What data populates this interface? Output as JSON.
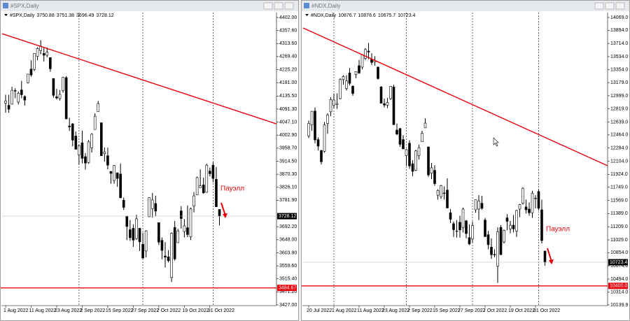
{
  "chart_data": [
    {
      "type": "candlestick",
      "title": "#SPX,Daily",
      "candles": [
        [
          4112,
          4140,
          4079,
          4119
        ],
        [
          4104,
          4140,
          4079,
          4091
        ],
        [
          4108,
          4167,
          4107,
          4155
        ],
        [
          4154,
          4162,
          4128,
          4152
        ],
        [
          4115,
          4151,
          4107,
          4145
        ],
        [
          4156,
          4187,
          4128,
          4140
        ],
        [
          4134,
          4138,
          4103,
          4122
        ],
        [
          4181,
          4211,
          4178,
          4210
        ],
        [
          4227,
          4257,
          4201,
          4207
        ],
        [
          4226,
          4280,
          4220,
          4280
        ],
        [
          4270,
          4301,
          4257,
          4297
        ],
        [
          4290,
          4325,
          4277,
          4305
        ],
        [
          4280,
          4302,
          4253,
          4274
        ],
        [
          4274,
          4300,
          4267,
          4284
        ],
        [
          4266,
          4267,
          4218,
          4228
        ],
        [
          4195,
          4196,
          4130,
          4138
        ],
        [
          4133,
          4160,
          4124,
          4129
        ],
        [
          4127,
          4156,
          4120,
          4141
        ],
        [
          4154,
          4200,
          4147,
          4199
        ],
        [
          4198,
          4203,
          4057,
          4058
        ],
        [
          4034,
          4062,
          4017,
          4031
        ],
        [
          4041,
          4044,
          3965,
          3986
        ],
        [
          4000,
          4015,
          3954,
          3955
        ],
        [
          3936,
          3970,
          3903,
          3967
        ],
        [
          3977,
          4018,
          3907,
          3924
        ],
        [
          3930,
          3942,
          3886,
          3908
        ],
        [
          3910,
          3987,
          3906,
          3980
        ],
        [
          3960,
          4010,
          3944,
          4006
        ],
        [
          4022,
          4077,
          4022,
          4067
        ],
        [
          4083,
          4119,
          4083,
          4110
        ],
        [
          4045,
          4045,
          3932,
          3933
        ],
        [
          3940,
          3961,
          3913,
          3946
        ],
        [
          3933,
          3960,
          3887,
          3901
        ],
        [
          3880,
          3880,
          3838,
          3873
        ],
        [
          3849,
          3901,
          3838,
          3900
        ],
        [
          3875,
          3876,
          3828,
          3856
        ],
        [
          3871,
          3907,
          3790,
          3790
        ],
        [
          3782,
          3791,
          3749,
          3758
        ],
        [
          3728,
          3728,
          3647,
          3693
        ],
        [
          3682,
          3715,
          3644,
          3655
        ],
        [
          3687,
          3700,
          3624,
          3647
        ],
        [
          3652,
          3733,
          3648,
          3719
        ],
        [
          3687,
          3687,
          3610,
          3641
        ],
        [
          3633,
          3672,
          3584,
          3586
        ],
        [
          3610,
          3680,
          3588,
          3678
        ],
        [
          3726,
          3792,
          3726,
          3791
        ],
        [
          3753,
          3807,
          3723,
          3783
        ],
        [
          3771,
          3797,
          3728,
          3745
        ],
        [
          3706,
          3706,
          3630,
          3640
        ],
        [
          3646,
          3656,
          3582,
          3612
        ],
        [
          3593,
          3640,
          3554,
          3589
        ],
        [
          3590,
          3613,
          3571,
          3577
        ],
        [
          3520,
          3673,
          3505,
          3670
        ],
        [
          3690,
          3712,
          3577,
          3583
        ],
        [
          3638,
          3685,
          3638,
          3678
        ],
        [
          3746,
          3762,
          3686,
          3720
        ],
        [
          3676,
          3718,
          3656,
          3695
        ],
        [
          3689,
          3764,
          3657,
          3666
        ],
        [
          3658,
          3757,
          3647,
          3753
        ],
        [
          3762,
          3810,
          3741,
          3797
        ],
        [
          3800,
          3862,
          3800,
          3859
        ],
        [
          3825,
          3887,
          3824,
          3831
        ],
        [
          3834,
          3859,
          3804,
          3807
        ],
        [
          3809,
          3906,
          3808,
          3901
        ],
        [
          3881,
          3893,
          3863,
          3872
        ],
        [
          3901,
          3911,
          3843,
          3856
        ],
        [
          3853,
          3895,
          3759,
          3760
        ],
        [
          3750.88,
          3751.38,
          3696.49,
          3728.12
        ]
      ],
      "categories": [
        "1 Aug 2022",
        null,
        null,
        null,
        null,
        null,
        null,
        null,
        "11 Aug 2022",
        null,
        null,
        null,
        null,
        null,
        null,
        null,
        "23 Aug 2022",
        null,
        null,
        null,
        null,
        null,
        null,
        null,
        "2 Sep 2022",
        null,
        null,
        null,
        null,
        null,
        null,
        null,
        "15 Sep 2022",
        null,
        null,
        null,
        null,
        null,
        null,
        null,
        "27 Sep 2022",
        null,
        null,
        null,
        null,
        null,
        null,
        null,
        "7 Oct 2022",
        null,
        null,
        null,
        null,
        null,
        null,
        null,
        "19 Oct 2022",
        null,
        null,
        null,
        null,
        null,
        null,
        null,
        "31 Oct 2022",
        null,
        null,
        null
      ],
      "ylim": [
        3427,
        4402
      ],
      "yticks": [
        {
          "value": 4402,
          "label": "4402.00"
        },
        {
          "value": 4357.6,
          "label": "4357.60"
        },
        {
          "value": 4313.6,
          "label": "4313.60"
        },
        {
          "value": 4269.4,
          "label": "4269.40"
        },
        {
          "value": 4225.2,
          "label": "4225.20"
        },
        {
          "value": 4181,
          "label": "4181.00"
        },
        {
          "value": 4135.5,
          "label": "4135.50"
        },
        {
          "value": 4091.3,
          "label": "4091.30"
        },
        {
          "value": 4047.1,
          "label": "4047.10"
        },
        {
          "value": 4002.9,
          "label": "4002.90"
        },
        {
          "value": 3958.7,
          "label": "3958.70"
        },
        {
          "value": 3914.5,
          "label": "3914.50"
        },
        {
          "value": 3870.3,
          "label": "3870.30"
        },
        {
          "value": 3826.1,
          "label": "3826.10"
        },
        {
          "value": 3781.9,
          "label": "3781.90"
        },
        {
          "value": 3692.2,
          "label": "3692.20"
        },
        {
          "value": 3648,
          "label": "3648.00"
        },
        {
          "value": 3603.8,
          "label": "3603.80"
        },
        {
          "value": 3559.6,
          "label": "3559.60"
        },
        {
          "value": 3515.4,
          "label": "3515.40"
        },
        {
          "value": 3471.2,
          "label": "3471.20"
        },
        {
          "value": 3427,
          "label": "3427.00"
        }
      ],
      "trendline": [
        4347,
        4041
      ],
      "trend_color": "#e8000b",
      "hline": 3484.67,
      "hline_color": "#e8000b",
      "annotation": "Пауэлл"
    },
    {
      "type": "candlestick",
      "title": "#NDX,Daily",
      "candles": [
        [
          12450,
          12660,
          12420,
          12622
        ],
        [
          12600,
          12790,
          12520,
          12787
        ],
        [
          12790,
          12840,
          12350,
          12396
        ],
        [
          12400,
          12430,
          12250,
          12310
        ],
        [
          12250,
          12260,
          12060,
          12097
        ],
        [
          12240,
          12640,
          12220,
          12601
        ],
        [
          12620,
          12760,
          12480,
          12738
        ],
        [
          12780,
          12980,
          12720,
          12947
        ],
        [
          12870,
          13030,
          12830,
          12941
        ],
        [
          12880,
          13030,
          12820,
          12893
        ],
        [
          12960,
          13240,
          12950,
          13220
        ],
        [
          13220,
          13280,
          13150,
          13262
        ],
        [
          13100,
          13280,
          13070,
          13202
        ],
        [
          13310,
          13380,
          13140,
          13169
        ],
        [
          13130,
          13140,
          13000,
          13030
        ],
        [
          13290,
          13330,
          13240,
          13330
        ],
        [
          13410,
          13490,
          13300,
          13310
        ],
        [
          13390,
          13560,
          13360,
          13560
        ],
        [
          13510,
          13650,
          13490,
          13631
        ],
        [
          13610,
          13720,
          13500,
          13596
        ],
        [
          13500,
          13580,
          13420,
          13455
        ],
        [
          13460,
          13540,
          13410,
          13481
        ],
        [
          13390,
          13400,
          13220,
          13234
        ],
        [
          13120,
          13130,
          12920,
          12897
        ],
        [
          12890,
          12960,
          12840,
          12872
        ],
        [
          12870,
          12970,
          12830,
          12908
        ],
        [
          12960,
          13130,
          12940,
          13129
        ],
        [
          13120,
          13150,
          12600,
          12604
        ],
        [
          12530,
          12620,
          12460,
          12476
        ],
        [
          12550,
          12560,
          12300,
          12334
        ],
        [
          12400,
          12460,
          12270,
          12272
        ],
        [
          12180,
          12270,
          12040,
          12262
        ],
        [
          12350,
          12390,
          12000,
          12040
        ],
        [
          12070,
          12120,
          11900,
          11966
        ],
        [
          11980,
          12260,
          11970,
          12245
        ],
        [
          12180,
          12330,
          12130,
          12290
        ],
        [
          12370,
          12520,
          12370,
          12487
        ],
        [
          12560,
          12690,
          12560,
          12625
        ],
        [
          12300,
          12300,
          11890,
          11916
        ],
        [
          11940,
          12080,
          11860,
          12014
        ],
        [
          11980,
          12050,
          11770,
          11797
        ],
        [
          11640,
          11720,
          11580,
          11705
        ],
        [
          11620,
          11780,
          11590,
          11769
        ],
        [
          11670,
          11760,
          11580,
          11664
        ],
        [
          11710,
          11870,
          11460,
          11465
        ],
        [
          11400,
          11450,
          11260,
          11310
        ],
        [
          11250,
          11280,
          11070,
          11168
        ],
        [
          11150,
          11300,
          11060,
          11152
        ],
        [
          11270,
          11360,
          11060,
          11166
        ],
        [
          11200,
          11470,
          11130,
          11450
        ],
        [
          11290,
          11300,
          11050,
          11115
        ],
        [
          11060,
          11240,
          10960,
          10972
        ],
        [
          11040,
          11280,
          10990,
          11223
        ],
        [
          11440,
          11580,
          11400,
          11577
        ],
        [
          11450,
          11640,
          11300,
          11561
        ],
        [
          11530,
          11630,
          11440,
          11460
        ],
        [
          11300,
          11330,
          11070,
          11073
        ],
        [
          11100,
          11150,
          10900,
          10963
        ],
        [
          10930,
          11050,
          10770,
          10826
        ],
        [
          10830,
          10900,
          10790,
          10825
        ],
        [
          10670,
          11200,
          10440,
          11140
        ],
        [
          11200,
          11230,
          10820,
          10828
        ],
        [
          11000,
          11170,
          10980,
          11160
        ],
        [
          11330,
          11380,
          11160,
          11282
        ],
        [
          11180,
          11290,
          11120,
          11228
        ],
        [
          11230,
          11370,
          11130,
          11179
        ],
        [
          11150,
          11440,
          11070,
          11431
        ],
        [
          11450,
          11520,
          11340,
          11510
        ],
        [
          11530,
          11750,
          11510,
          11735
        ],
        [
          11480,
          11580,
          11390,
          11440
        ],
        [
          11450,
          11540,
          11360,
          11400
        ],
        [
          11400,
          11700,
          11330,
          11666
        ],
        [
          11600,
          11640,
          11460,
          11600
        ],
        [
          11690,
          11720,
          11430,
          11460
        ],
        [
          11440,
          11580,
          10980,
          11020
        ],
        [
          10876.7,
          10878.6,
          10675.7,
          10723.4
        ]
      ],
      "categories": [
        "20 Jul 2022",
        null,
        null,
        null,
        null,
        null,
        null,
        null,
        "1 Aug 2022",
        null,
        null,
        null,
        null,
        null,
        null,
        null,
        "11 Aug 2022",
        null,
        null,
        null,
        null,
        null,
        null,
        null,
        "23 Aug 2022",
        null,
        null,
        null,
        null,
        null,
        null,
        null,
        "2 Sep 2022",
        null,
        null,
        null,
        null,
        null,
        null,
        null,
        "15 Sep 2022",
        null,
        null,
        null,
        null,
        null,
        null,
        null,
        "27 Sep 2022",
        null,
        null,
        null,
        null,
        null,
        null,
        null,
        "7 Oct 2022",
        null,
        null,
        null,
        null,
        null,
        null,
        null,
        "19 Oct 2022",
        null,
        null,
        null,
        null,
        null,
        null,
        null,
        "31 Oct 2022",
        null,
        null,
        null
      ],
      "ylim": [
        10139.9,
        14069
      ],
      "yticks": [
        {
          "value": 14069,
          "label": "14069.0"
        },
        {
          "value": 13894,
          "label": "13894.0"
        },
        {
          "value": 13714,
          "label": "13714.0"
        },
        {
          "value": 13534,
          "label": "13534.0"
        },
        {
          "value": 13354,
          "label": "13354.0"
        },
        {
          "value": 13179,
          "label": "13179.0"
        },
        {
          "value": 12999,
          "label": "12999.0"
        },
        {
          "value": 12819,
          "label": "12819.0"
        },
        {
          "value": 12639,
          "label": "12639.0"
        },
        {
          "value": 12464,
          "label": "12464.0"
        },
        {
          "value": 12284,
          "label": "12284.0"
        },
        {
          "value": 12104,
          "label": "12104.0"
        },
        {
          "value": 11924,
          "label": "11924.0"
        },
        {
          "value": 11749,
          "label": "11749.0"
        },
        {
          "value": 11569,
          "label": "11569.0"
        },
        {
          "value": 11389,
          "label": "11389.0"
        },
        {
          "value": 11209,
          "label": "11209.0"
        },
        {
          "value": 11029,
          "label": "11029.0"
        },
        {
          "value": 10854,
          "label": "10854.0"
        },
        {
          "value": 10674,
          "label": "10674.0"
        },
        {
          "value": 10494,
          "label": "10494.0"
        },
        {
          "value": 10314,
          "label": "10314.0"
        },
        {
          "value": 10139.9,
          "label": "10139.9"
        }
      ],
      "trendline": [
        13926,
        12042
      ],
      "trend_color": "#e8000b",
      "hline": {
        "value": 10400,
        "label": "10400.0"
      },
      "hline_color": "#e8000b",
      "annotation": "Пауэлл"
    }
  ]
}
